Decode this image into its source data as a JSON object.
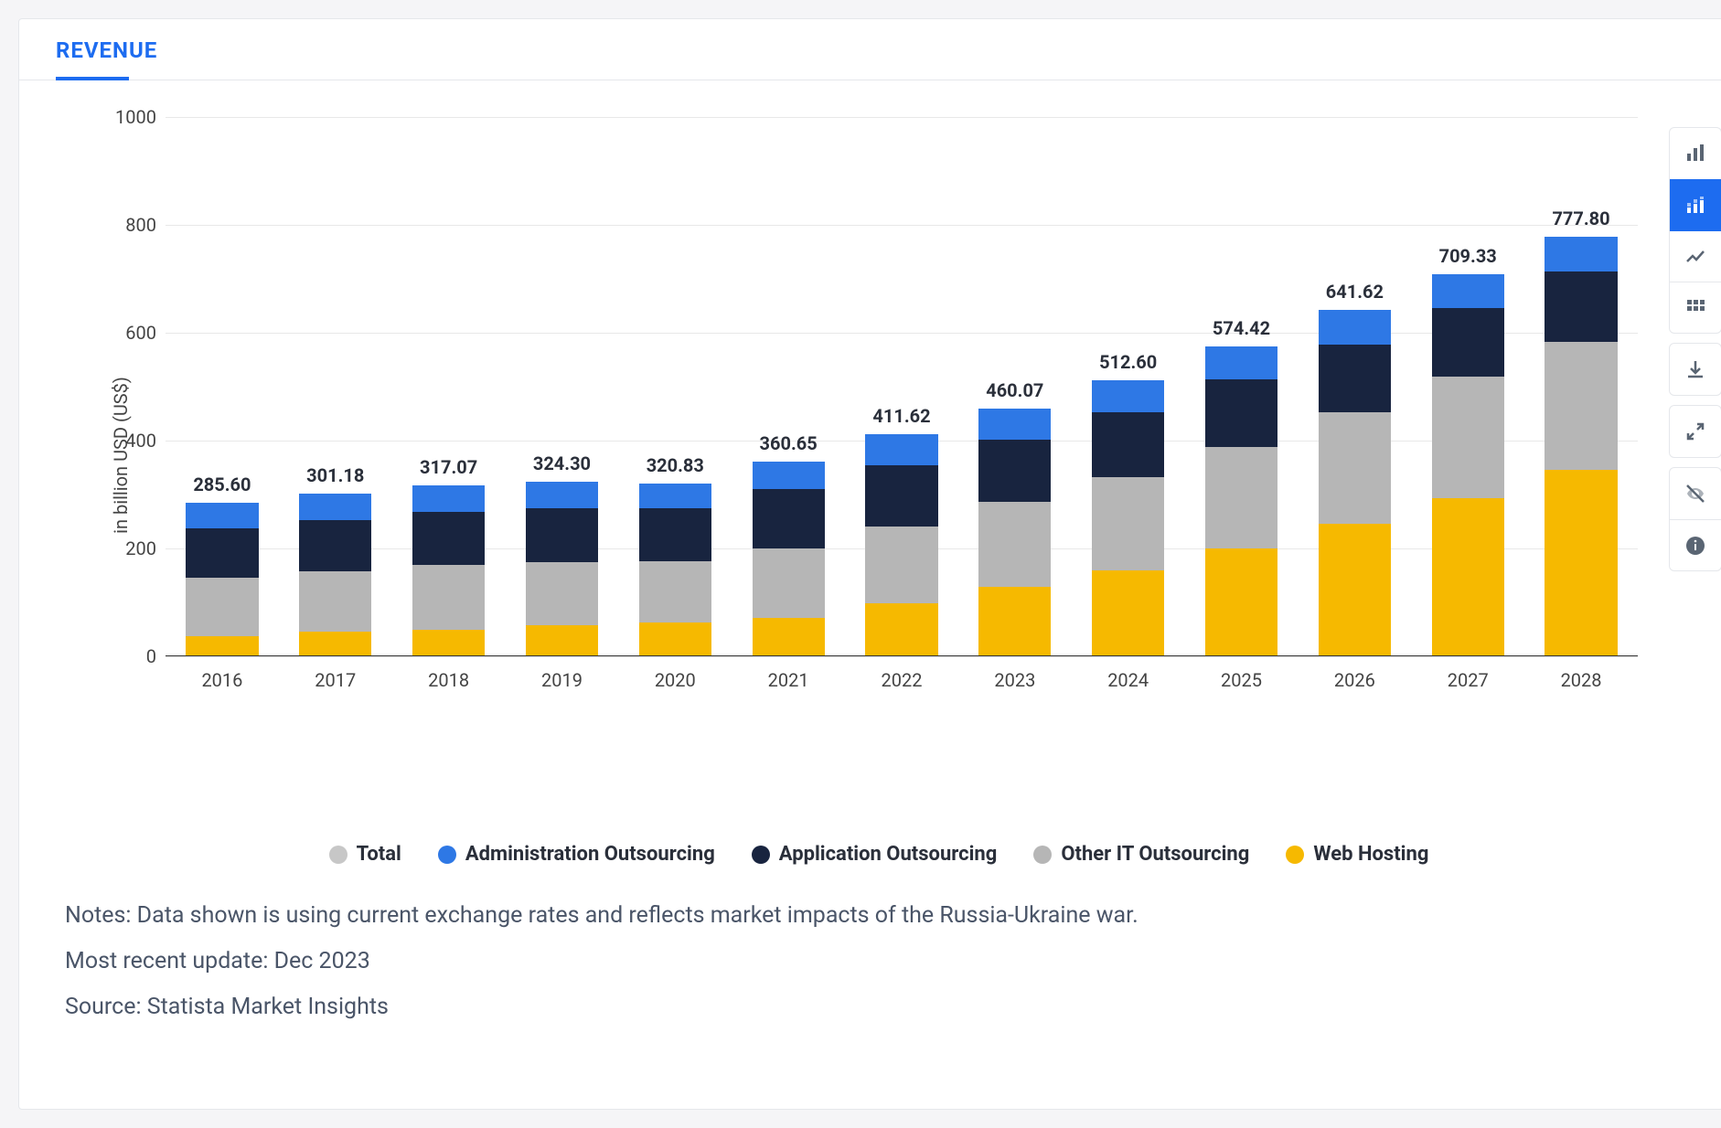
{
  "tab": {
    "label": "REVENUE"
  },
  "chart": {
    "type": "stacked-bar",
    "ylabel": "in billion USD (US$)",
    "ylim": [
      0,
      1000
    ],
    "ytick_step": 200,
    "yticks": [
      0,
      200,
      400,
      600,
      800,
      1000
    ],
    "categories": [
      "2016",
      "2017",
      "2018",
      "2019",
      "2020",
      "2021",
      "2022",
      "2023",
      "2024",
      "2025",
      "2026",
      "2027",
      "2028"
    ],
    "totals": [
      285.6,
      301.18,
      317.07,
      324.3,
      320.83,
      360.65,
      411.62,
      460.07,
      512.6,
      574.42,
      641.62,
      709.33,
      777.8
    ],
    "total_labels": [
      "285.60",
      "301.18",
      "317.07",
      "324.30",
      "320.83",
      "360.65",
      "411.62",
      "460.07",
      "512.60",
      "574.42",
      "641.62",
      "709.33",
      "777.80"
    ],
    "series": [
      {
        "name": "Web Hosting",
        "values": [
          38,
          45,
          50,
          57,
          63,
          72,
          98,
          128,
          160,
          200,
          245,
          293,
          345
        ]
      },
      {
        "name": "Other IT Outsourcing",
        "values": [
          108,
          113,
          120,
          118,
          113,
          128,
          142,
          158,
          173,
          188,
          208,
          225,
          238
        ]
      },
      {
        "name": "Application Outsourcing",
        "values": [
          92,
          95,
          98,
          100,
          98,
          110,
          115,
          115,
          120,
          125,
          125,
          128,
          130
        ]
      },
      {
        "name": "Administration Outsourcing",
        "values": [
          47.6,
          48.18,
          49.07,
          49.3,
          46.83,
          50.65,
          56.62,
          59.07,
          59.6,
          61.42,
          63.62,
          63.33,
          64.8
        ]
      }
    ],
    "colors": {
      "Total": "#c7c7c7",
      "Administration Outsourcing": "#2e78e5",
      "Application Outsourcing": "#18243f",
      "Other IT Outsourcing": "#b6b6b6",
      "Web Hosting": "#f6b900"
    },
    "legend_order": [
      "Total",
      "Administration Outsourcing",
      "Application Outsourcing",
      "Other IT Outsourcing",
      "Web Hosting"
    ],
    "grid_color": "#e8e8e8",
    "background_color": "#ffffff",
    "bar_width_ratio": 0.64,
    "label_fontsize": 20,
    "label_fontweight": 700,
    "axis_fontsize": 20
  },
  "notes": {
    "line1": "Notes: Data shown is using current exchange rates and reflects market impacts of the Russia-Ukraine war.",
    "line2": "Most recent update: Dec 2023",
    "line3": "Source: Statista Market Insights"
  },
  "toolbar": {
    "icons": [
      {
        "name": "bar-chart-icon",
        "active": false
      },
      {
        "name": "stacked-bar-icon",
        "active": true
      },
      {
        "name": "line-chart-icon",
        "active": false
      },
      {
        "name": "table-icon",
        "active": false
      }
    ],
    "icons2": [
      {
        "name": "download-icon"
      }
    ],
    "icons3": [
      {
        "name": "expand-icon"
      }
    ],
    "icons4": [
      {
        "name": "visibility-off-icon"
      },
      {
        "name": "info-icon"
      }
    ]
  }
}
